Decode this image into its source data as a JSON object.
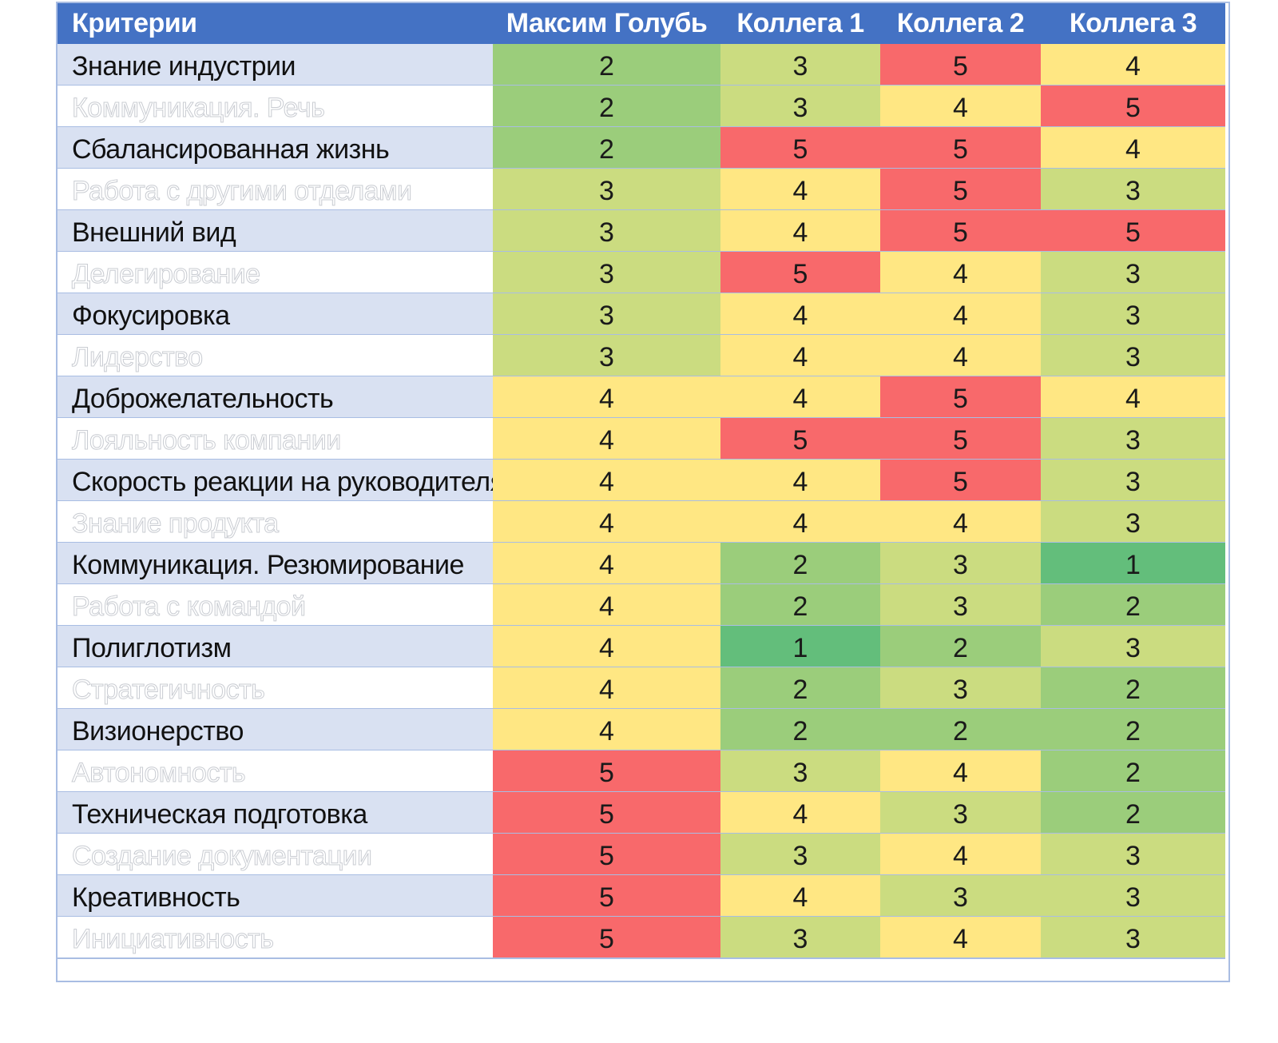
{
  "chart_data": {
    "type": "heatmap",
    "title": "",
    "columns": [
      "Критерии",
      "Максим Голубь",
      "Коллега 1",
      "Коллега 2",
      "Коллега 3"
    ],
    "rows": [
      {
        "label": "Знание индустрии",
        "values": [
          2,
          3,
          5,
          4
        ]
      },
      {
        "label": "Коммуникация. Речь",
        "values": [
          2,
          3,
          4,
          5
        ]
      },
      {
        "label": "Сбалансированная жизнь",
        "values": [
          2,
          5,
          5,
          4
        ]
      },
      {
        "label": "Работа с другими отделами",
        "values": [
          3,
          4,
          5,
          3
        ]
      },
      {
        "label": "Внешний вид",
        "values": [
          3,
          4,
          5,
          5
        ]
      },
      {
        "label": "Делегирование",
        "values": [
          3,
          5,
          4,
          3
        ]
      },
      {
        "label": "Фокусировка",
        "values": [
          3,
          4,
          4,
          3
        ]
      },
      {
        "label": "Лидерство",
        "values": [
          3,
          4,
          4,
          3
        ]
      },
      {
        "label": "Доброжелательность",
        "values": [
          4,
          4,
          5,
          4
        ]
      },
      {
        "label": "Лояльность компании",
        "values": [
          4,
          5,
          5,
          3
        ]
      },
      {
        "label": "Скорость реакции на руководителя",
        "values": [
          4,
          4,
          5,
          3
        ]
      },
      {
        "label": "Знание продукта",
        "values": [
          4,
          4,
          4,
          3
        ]
      },
      {
        "label": "Коммуникация. Резюмирование",
        "values": [
          4,
          2,
          3,
          1
        ]
      },
      {
        "label": "Работа с командой",
        "values": [
          4,
          2,
          3,
          2
        ]
      },
      {
        "label": "Полиглотизм",
        "values": [
          4,
          1,
          2,
          3
        ]
      },
      {
        "label": "Стратегичность",
        "values": [
          4,
          2,
          3,
          2
        ]
      },
      {
        "label": "Визионерство",
        "values": [
          4,
          2,
          2,
          2
        ]
      },
      {
        "label": "Автономность",
        "values": [
          5,
          3,
          4,
          2
        ]
      },
      {
        "label": "Техническая подготовка",
        "values": [
          5,
          4,
          3,
          2
        ]
      },
      {
        "label": "Создание документации",
        "values": [
          5,
          3,
          4,
          3
        ]
      },
      {
        "label": "Креативность",
        "values": [
          5,
          4,
          3,
          3
        ]
      },
      {
        "label": "Инициативность",
        "values": [
          5,
          3,
          4,
          3
        ]
      }
    ],
    "color_scale": {
      "1": "#63be7b",
      "2": "#9bcd7b",
      "3": "#cbdc80",
      "4": "#ffe783",
      "5": "#f8696b"
    },
    "colors": {
      "header_bg": "#4472c4",
      "header_text": "#ffffff",
      "row_band": "#d9e1f2",
      "row_plain": "#ffffff",
      "grid": "#a9bde3"
    }
  }
}
